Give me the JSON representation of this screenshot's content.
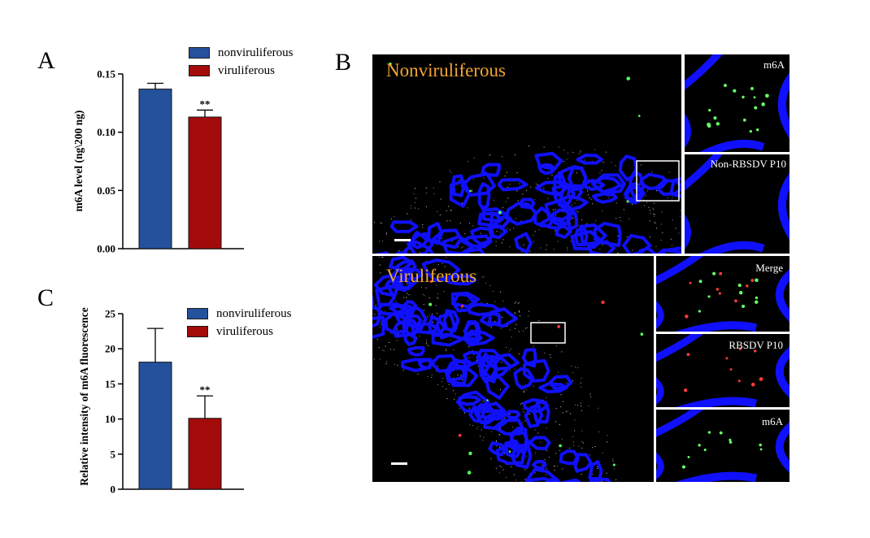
{
  "panels": {
    "a": "A",
    "b": "B",
    "c": "C"
  },
  "colors": {
    "nonviruliferous": "#24519c",
    "viruliferous": "#a30b0b",
    "membrane": "#1010ff",
    "title": "#f2a531"
  },
  "chart_data": [
    {
      "type": "bar",
      "categories": [
        "nonviruliferous",
        "viruliferous"
      ],
      "values": [
        0.137,
        0.113
      ],
      "errors": [
        0.005,
        0.006
      ],
      "significance": [
        "",
        "**"
      ],
      "ylabel": "m6A level (ng\\200 ng)",
      "ylim": [
        0,
        0.15
      ],
      "yticks": [
        "0.00",
        "0.05",
        "0.10",
        "0.15"
      ],
      "ytick_values": [
        0,
        0.05,
        0.1,
        0.15
      ],
      "legend": [
        "nonviruliferous",
        "viruliferous"
      ],
      "legend_position": "top-right"
    },
    {
      "type": "bar",
      "categories": [
        "nonviruliferous",
        "viruliferous"
      ],
      "values": [
        18.1,
        10.1
      ],
      "errors": [
        4.8,
        3.2
      ],
      "significance": [
        "",
        "**"
      ],
      "ylabel": "Relative intensity of m6A fluorescence",
      "ylim": [
        0,
        25
      ],
      "yticks": [
        "0",
        "5",
        "10",
        "15",
        "20",
        "25"
      ],
      "ytick_values": [
        0,
        5,
        10,
        15,
        20,
        25
      ],
      "legend": [
        "nonviruliferous",
        "viruliferous"
      ],
      "legend_position": "top-right"
    }
  ],
  "micrographs": {
    "top_title": "Nonviruliferous",
    "bottom_title": "Viruliferous",
    "top_insets": [
      "m6A",
      "Non-RBSDV P10"
    ],
    "bottom_insets": [
      "Merge",
      "RBSDV P10",
      "m6A"
    ]
  }
}
